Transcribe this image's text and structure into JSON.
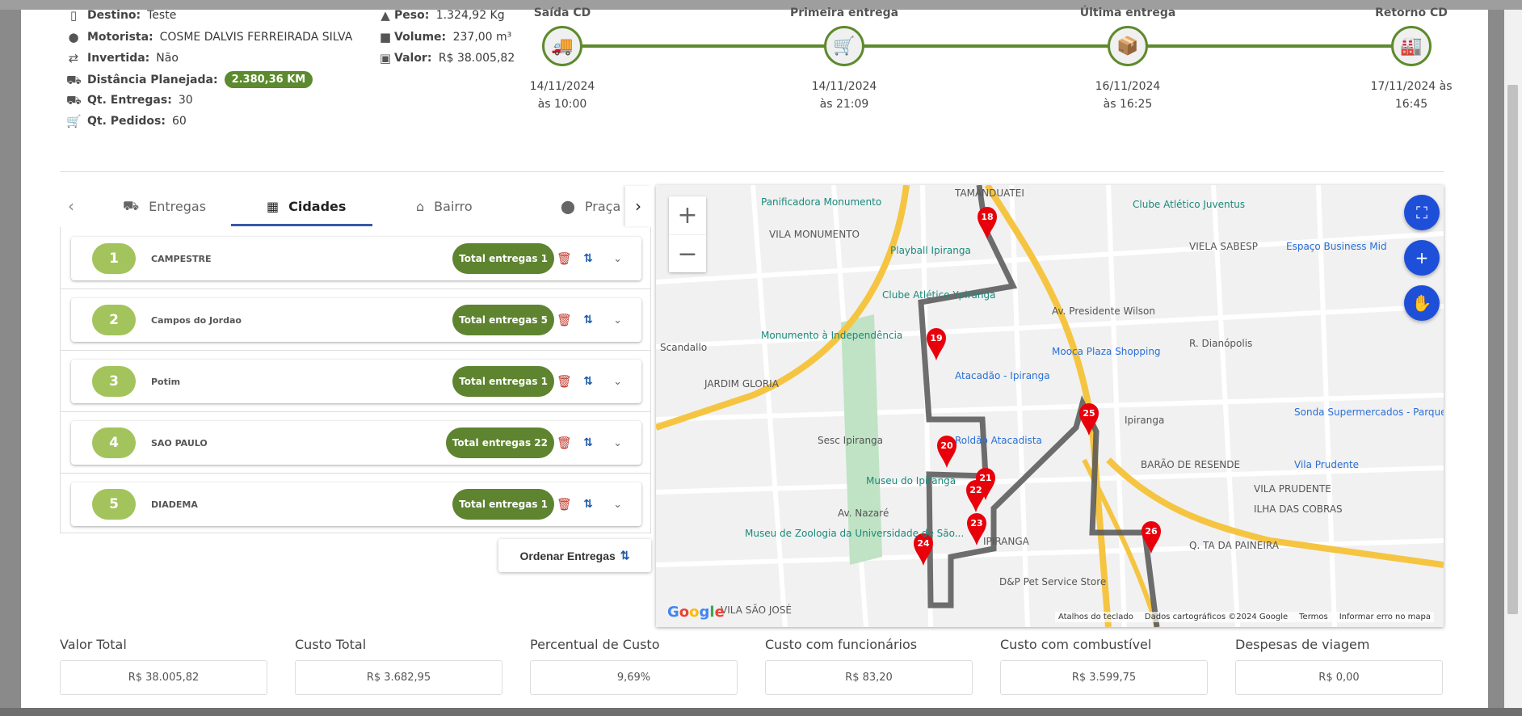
{
  "summary": {
    "destino": {
      "label": "Destino:",
      "value": "Teste",
      "icon": "map-icon"
    },
    "motorista": {
      "label": "Motorista:",
      "value": "COSME DALVIS FERREIRADA SILVA",
      "icon": "user-circle-icon"
    },
    "invertida": {
      "label": "Invertida:",
      "value": "Não",
      "icon": "swap-icon"
    },
    "distancia": {
      "label": "Distância Planejada:",
      "value": "2.380,36 KM",
      "icon": "truck-icon"
    },
    "entregas": {
      "label": "Qt. Entregas:",
      "value": "30",
      "icon": "truck-icon"
    },
    "pedidos": {
      "label": "Qt. Pedidos:",
      "value": "60",
      "icon": "cart-icon"
    },
    "peso": {
      "label": "Peso:",
      "value": "1.324,92 Kg",
      "icon": "weight-icon"
    },
    "volume": {
      "label": "Volume:",
      "value": "237,00 m³",
      "icon": "box-icon"
    },
    "valor": {
      "label": "Valor:",
      "value": "R$ 38.005,82",
      "icon": "money-icon"
    }
  },
  "timeline": [
    {
      "title": "Saída CD",
      "date": "14/11/2024",
      "time": "às 10:00",
      "icon": "truck-icon"
    },
    {
      "title": "Primeira entrega",
      "date": "14/11/2024",
      "time": "às 21:09",
      "icon": "hand-truck-icon"
    },
    {
      "title": "Última entrega",
      "date": "16/11/2024",
      "time": "às 16:25",
      "icon": "package-clock-icon"
    },
    {
      "title": "Retorno CD",
      "date": "17/11/2024 às",
      "time": "16:45",
      "icon": "warehouse-icon"
    }
  ],
  "timeline_color": "#5e8a2d",
  "tabs": [
    {
      "label": "Entregas"
    },
    {
      "label": "Cidades",
      "active": true
    },
    {
      "label": "Bairro"
    },
    {
      "label": "Praça"
    }
  ],
  "cities": [
    {
      "num": "1",
      "name": "CAMPESTRE",
      "total": "Total entregas 1"
    },
    {
      "num": "2",
      "name": "Campos do Jordao",
      "total": "Total entregas 5"
    },
    {
      "num": "3",
      "name": "Potim",
      "total": "Total entregas 1"
    },
    {
      "num": "4",
      "name": "SAO PAULO",
      "total": "Total entregas 22"
    },
    {
      "num": "5",
      "name": "DIADEMA",
      "total": "Total entregas 1"
    }
  ],
  "order_button": "Ordenar Entregas",
  "map": {
    "labels": [
      "TAMANDUATEI",
      "Clube Atlético Juventus",
      "Panificadora Monumento",
      "VILA MONUMENTO",
      "Playball Ipiranga",
      "VIELA SABESP",
      "Espaço Business Mid",
      "Clube Atlético Ypiranga",
      "Av. Presidente Wilson",
      "R. Dianópolis",
      "Monumento à Independência",
      "Scandallo",
      "Mooca Plaza Shopping",
      "Atacadão - Ipiranga",
      "JARDIM GLORIA",
      "Sonda Supermercados - Parque da Mooca",
      "Sesc Ipiranga",
      "Roldão Atacadista",
      "Ipiranga",
      "BARÃO DE RESENDE",
      "VILA PRUDENTE",
      "Museu do Ipiranga",
      "ILHA DAS COBRAS",
      "Museu de Zoologia da Universidade de São...",
      "IPIRANGA",
      "Q. TA DA PAINEIRA",
      "D&P Pet Service Store",
      "VILA SÃO JOSÉ",
      "Vila Prudente",
      "Av. Nazaré"
    ],
    "markers": [
      "18",
      "19",
      "20",
      "21",
      "22",
      "23",
      "24",
      "25",
      "26"
    ],
    "zoom_in": "+",
    "zoom_out": "−",
    "attribution": [
      "Atalhos do teclado",
      "Dados cartográficos ©2024 Google",
      "Termos",
      "Informar erro no mapa"
    ],
    "logo": "Google"
  },
  "stats": [
    {
      "label": "Valor Total",
      "value": "R$ 38.005,82"
    },
    {
      "label": "Custo Total",
      "value": "R$ 3.682,95"
    },
    {
      "label": "Percentual de Custo",
      "value": "9,69%"
    },
    {
      "label": "Custo com funcionários",
      "value": "R$ 83,20"
    },
    {
      "label": "Custo com combustível",
      "value": "R$ 3.599,75"
    },
    {
      "label": "Despesas de viagem",
      "value": "R$ 0,00"
    }
  ]
}
